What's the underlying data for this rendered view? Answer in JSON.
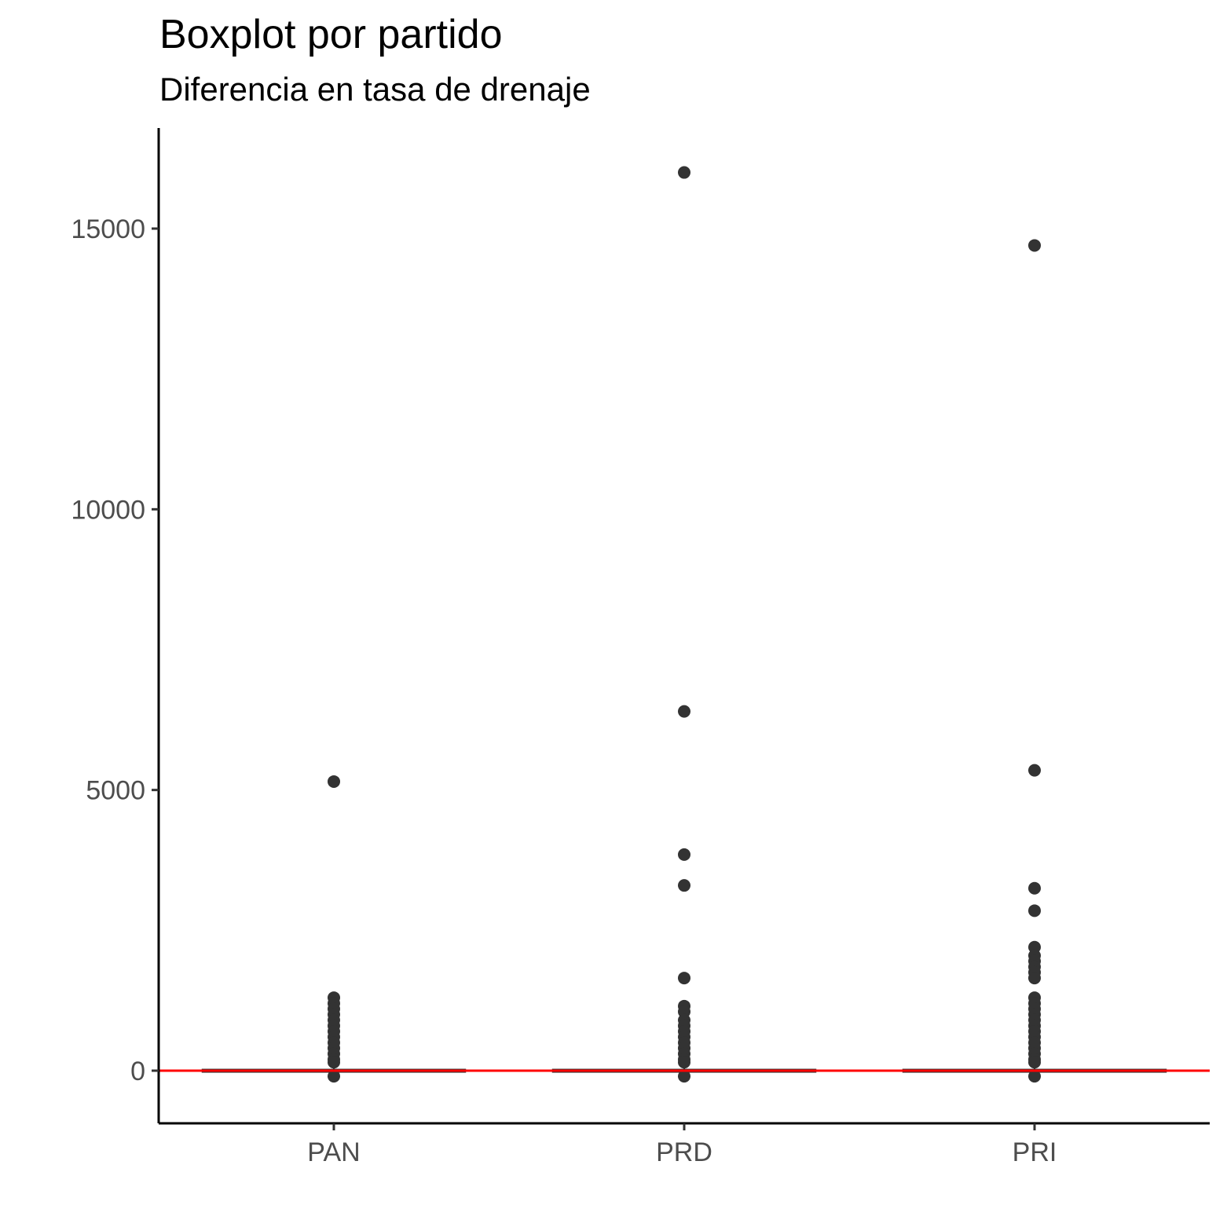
{
  "chart_data": {
    "type": "boxplot",
    "title": "Boxplot por partido",
    "subtitle": "Diferencia en tasa de drenaje",
    "xlabel": "",
    "ylabel": "",
    "categories": [
      "PAN",
      "PRD",
      "PRI"
    ],
    "ylim": [
      -900,
      16900
    ],
    "yticks": [
      0,
      5000,
      10000,
      15000
    ],
    "grid": false,
    "reference_line": {
      "y": 0,
      "color": "#ff0000"
    },
    "boxes": [
      {
        "name": "PAN",
        "q1": -20,
        "median": 0,
        "q3": 20,
        "whisker_low": -100,
        "whisker_high": 100
      },
      {
        "name": "PRD",
        "q1": -20,
        "median": 0,
        "q3": 20,
        "whisker_low": -100,
        "whisker_high": 100
      },
      {
        "name": "PRI",
        "q1": -20,
        "median": 0,
        "q3": 20,
        "whisker_low": -100,
        "whisker_high": 100
      }
    ],
    "outliers": [
      {
        "category": "PAN",
        "values": [
          5150,
          1300,
          1200,
          1100,
          1000,
          900,
          800,
          700,
          600,
          500,
          400,
          300,
          200,
          150,
          -100
        ]
      },
      {
        "category": "PRD",
        "values": [
          16000,
          6400,
          3850,
          3300,
          1650,
          1150,
          1050,
          900,
          800,
          700,
          600,
          500,
          400,
          300,
          200,
          150,
          -100
        ]
      },
      {
        "category": "PRI",
        "values": [
          14700,
          5350,
          3250,
          2850,
          2200,
          2050,
          1950,
          1850,
          1750,
          1650,
          1300,
          1200,
          1100,
          1000,
          900,
          800,
          700,
          600,
          500,
          400,
          300,
          200,
          150,
          -100
        ]
      }
    ],
    "point_color": "#333333"
  }
}
